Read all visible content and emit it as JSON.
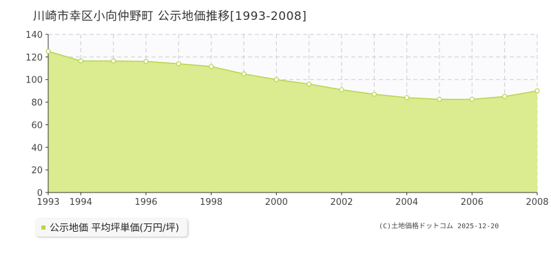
{
  "chart_data": {
    "type": "area",
    "title": "川崎市幸区小向仲野町 公示地価推移[1993-2008]",
    "xlabel": "",
    "ylabel": "",
    "x": [
      1993,
      1994,
      1995,
      1996,
      1997,
      1998,
      1999,
      2000,
      2001,
      2002,
      2003,
      2004,
      2005,
      2006,
      2007,
      2008
    ],
    "xlim": [
      1993,
      2008
    ],
    "ylim": [
      0,
      140
    ],
    "x_ticks": [
      "1993",
      "1994",
      "1996",
      "1998",
      "2000",
      "2002",
      "2004",
      "2006",
      "2008"
    ],
    "y_ticks": [
      "0",
      "20",
      "40",
      "60",
      "80",
      "100",
      "120",
      "140"
    ],
    "grid": true,
    "legend_position": "bottom-left",
    "series": [
      {
        "name": "公示地価 平均坪単価(万円/坪)",
        "color": "#b5d64a",
        "fill": "#dbeb90",
        "values": [
          125,
          116.5,
          116.5,
          116,
          114,
          111.5,
          105,
          100,
          96,
          91,
          87,
          84,
          82.5,
          82.5,
          85,
          90
        ]
      }
    ]
  },
  "credit": "(C)土地価格ドットコム 2025-12-20",
  "colors": {
    "accent": "#b5d64a",
    "plot_bg": "#fbfafc",
    "grid": "#cccccc"
  }
}
